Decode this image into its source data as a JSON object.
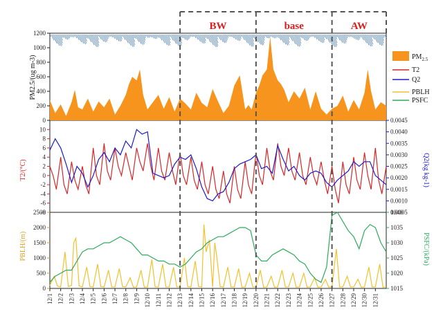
{
  "chart_data": [
    {
      "type": "area",
      "panel": "top",
      "ylabel": "PM2.5/(ug m-3)",
      "ylim": [
        0,
        1200
      ],
      "yticks": [
        "0",
        "200",
        "400",
        "600",
        "800",
        "1000",
        "1200"
      ],
      "series": [
        {
          "name": "PM2.5",
          "color": "#f7941d",
          "x": [
            1,
            1.5,
            2,
            2.5,
            3,
            3.3,
            3.6,
            4,
            4.5,
            5,
            5.5,
            6,
            6.5,
            7,
            7.5,
            8,
            8.3,
            8.6,
            9,
            9.3,
            9.6,
            10,
            10.5,
            11,
            11.5,
            12,
            12.5,
            13,
            13.5,
            14,
            14.5,
            15,
            15.5,
            16,
            16.5,
            17,
            17.5,
            18,
            18.5,
            19,
            19.3,
            19.6,
            20,
            20.3,
            20.6,
            21,
            21.3,
            21.6,
            22,
            22.3,
            22.6,
            23,
            23.5,
            24,
            24.5,
            25,
            25.5,
            26,
            26.5,
            27,
            27.5,
            28,
            28.5,
            29,
            29.5,
            30,
            30.3,
            30.6,
            31,
            31.5,
            32
          ],
          "values": [
            280,
            100,
            220,
            60,
            250,
            420,
            180,
            150,
            300,
            120,
            260,
            180,
            300,
            80,
            200,
            350,
            500,
            600,
            550,
            700,
            350,
            150,
            250,
            350,
            160,
            320,
            120,
            300,
            230,
            150,
            380,
            240,
            180,
            430,
            260,
            100,
            200,
            480,
            620,
            150,
            210,
            150,
            380,
            480,
            620,
            700,
            1150,
            700,
            550,
            500,
            420,
            250,
            400,
            300,
            450,
            150,
            400,
            160,
            80,
            160,
            200,
            340,
            120,
            280,
            150,
            380,
            700,
            400,
            150,
            250,
            200
          ]
        },
        {
          "name": "wind",
          "color": "#1f5fa8"
        }
      ],
      "legend": [
        "PM2.5",
        "T2",
        "Q2",
        "PBLH",
        "PSFC"
      ],
      "legend_position": "right"
    },
    {
      "type": "line",
      "panel": "middle",
      "ylabel_left": "T2/(°C)",
      "ylabel_right": "Q2(kg kg-1)",
      "ylim_left": [
        -8,
        12
      ],
      "ylim_right": [
        0.0005,
        0.0045
      ],
      "yticks_left": [
        "-8",
        "-6",
        "-4",
        "-2",
        "0",
        "2",
        "4",
        "6",
        "8",
        "10"
      ],
      "yticks_right": [
        "0.0005",
        "0.0010",
        "0.0015",
        "0.0020",
        "0.0025",
        "0.0030",
        "0.0035",
        "0.0040",
        "0.0045"
      ],
      "series": [
        {
          "name": "T2",
          "color": "#d62728",
          "x": [
            1,
            1.3,
            1.6,
            2,
            2.3,
            2.6,
            3,
            3.3,
            3.6,
            4,
            4.3,
            4.6,
            5,
            5.3,
            5.6,
            6,
            6.3,
            6.6,
            7,
            7.3,
            7.6,
            8,
            8.3,
            8.6,
            9,
            9.3,
            9.6,
            10,
            10.3,
            10.6,
            11,
            11.3,
            11.6,
            12,
            12.3,
            12.6,
            13,
            13.3,
            13.6,
            14,
            14.3,
            14.6,
            15,
            15.3,
            15.6,
            16,
            16.3,
            16.6,
            17,
            17.3,
            17.6,
            18,
            18.3,
            18.6,
            19,
            19.3,
            19.6,
            20,
            20.3,
            20.6,
            21,
            21.3,
            21.6,
            22,
            22.3,
            22.6,
            23,
            23.3,
            23.6,
            24,
            24.3,
            24.6,
            25,
            25.3,
            25.6,
            26,
            26.3,
            26.6,
            27,
            27.3,
            27.6,
            28,
            28.3,
            28.6,
            29,
            29.3,
            29.6,
            30,
            30.3,
            30.6,
            31,
            31.3,
            31.6,
            32
          ],
          "values": [
            2,
            0,
            -3,
            4,
            -2,
            -4,
            3,
            -1,
            -3,
            2,
            -2,
            -4,
            6,
            0,
            -2,
            7,
            1,
            -1,
            6,
            2,
            0,
            5,
            2,
            -1,
            6,
            3,
            1,
            7,
            2,
            -1,
            6,
            1,
            -1,
            5,
            1,
            -2,
            5,
            0,
            -2,
            4,
            -1,
            -3,
            3,
            -2,
            -4,
            2,
            -3,
            -5,
            1,
            -4,
            -6,
            2,
            -3,
            -5,
            3,
            -2,
            -4,
            5,
            0,
            -2,
            6,
            1,
            -1,
            7,
            2,
            0,
            6,
            1,
            -1,
            5,
            0,
            -2,
            4,
            0,
            -2,
            3,
            -1,
            -4,
            2,
            -3,
            -6,
            3,
            -2,
            -4,
            4,
            -1,
            -3,
            5,
            0,
            -3,
            6,
            -1,
            -4,
            2
          ]
        },
        {
          "name": "Q2",
          "color": "#1a1ad0",
          "x": [
            1,
            1.5,
            2,
            2.5,
            3,
            3.5,
            4,
            4.5,
            5,
            5.5,
            6,
            6.5,
            7,
            7.5,
            8,
            8.5,
            9,
            9.5,
            10,
            10.5,
            11,
            11.5,
            12,
            12.5,
            13,
            13.5,
            14,
            14.5,
            15,
            15.5,
            16,
            16.5,
            17,
            17.5,
            18,
            18.5,
            19,
            19.5,
            20,
            20.5,
            21,
            21.5,
            22,
            22.5,
            23,
            23.5,
            24,
            24.5,
            25,
            25.5,
            26,
            26.5,
            27,
            27.5,
            28,
            28.5,
            29,
            29.5,
            30,
            30.5,
            31,
            31.5,
            32
          ],
          "values": [
            0.0032,
            0.0037,
            0.0033,
            0.0026,
            0.0018,
            0.0025,
            0.0022,
            0.0016,
            0.0021,
            0.0028,
            0.0031,
            0.0027,
            0.0033,
            0.003,
            0.0036,
            0.0033,
            0.0041,
            0.0039,
            0.004,
            0.0022,
            0.0021,
            0.002,
            0.0021,
            0.0026,
            0.0029,
            0.0028,
            0.003,
            0.0024,
            0.0016,
            0.0011,
            0.001,
            0.0013,
            0.0014,
            0.0018,
            0.0024,
            0.0026,
            0.0027,
            0.0028,
            0.003,
            0.0024,
            0.0025,
            0.0022,
            0.0034,
            0.0028,
            0.0023,
            0.0025,
            0.0021,
            0.0019,
            0.0022,
            0.0023,
            0.0022,
            0.0018,
            0.0016,
            0.0019,
            0.0021,
            0.0023,
            0.0027,
            0.0025,
            0.0027,
            0.0027,
            0.0021,
            0.0019,
            0.0017
          ]
        }
      ]
    },
    {
      "type": "line",
      "panel": "bottom",
      "ylabel_left": "PBLH/(m)",
      "ylabel_right": "PSFC/(kPa)",
      "ylim_left": [
        0,
        2500
      ],
      "ylim_right": [
        1015,
        1040
      ],
      "yticks_left": [
        "0",
        "500",
        "1000",
        "1500",
        "2000",
        "2500"
      ],
      "yticks_right": [
        "1015",
        "1020",
        "1025",
        "1030",
        "1035",
        "1040"
      ],
      "series": [
        {
          "name": "PBLH",
          "color": "#f2c12e",
          "x": [
            1,
            1.4,
            1.7,
            2,
            2.4,
            2.7,
            3,
            3.2,
            3.4,
            3.7,
            4,
            4.4,
            4.7,
            5,
            5.4,
            5.7,
            6,
            6.4,
            6.7,
            7,
            7.4,
            7.7,
            8,
            8.4,
            8.7,
            9,
            9.4,
            9.7,
            10,
            10.4,
            10.7,
            11,
            11.4,
            11.7,
            12,
            12.4,
            12.7,
            13,
            13.4,
            13.7,
            14,
            14.4,
            14.7,
            15,
            15.2,
            15.4,
            15.7,
            16,
            16.2,
            16.4,
            16.7,
            17,
            17.4,
            17.7,
            18,
            18.4,
            18.7,
            19,
            19.4,
            19.7,
            20,
            20.4,
            20.7,
            21,
            21.4,
            21.7,
            22,
            22.4,
            22.7,
            23,
            23.4,
            23.7,
            24,
            24.4,
            24.7,
            25,
            25.4,
            25.7,
            26,
            26.4,
            26.7,
            27,
            27.4,
            27.7,
            28,
            28.4,
            28.7,
            29,
            29.4,
            29.7,
            30,
            30.4,
            30.7,
            31,
            31.4,
            31.7,
            32
          ],
          "values": [
            100,
            400,
            80,
            50,
            1200,
            60,
            100,
            1500,
            1650,
            80,
            50,
            700,
            60,
            50,
            800,
            60,
            50,
            600,
            50,
            50,
            650,
            60,
            50,
            350,
            40,
            50,
            600,
            40,
            50,
            950,
            50,
            50,
            800,
            50,
            50,
            700,
            50,
            50,
            1000,
            60,
            50,
            900,
            60,
            50,
            2100,
            1200,
            1600,
            50,
            1500,
            1000,
            60,
            50,
            700,
            50,
            50,
            650,
            40,
            50,
            500,
            50,
            50,
            600,
            40,
            50,
            400,
            40,
            50,
            600,
            50,
            50,
            500,
            40,
            50,
            500,
            40,
            50,
            350,
            40,
            50,
            300,
            40,
            50,
            1300,
            50,
            50,
            400,
            50,
            50,
            300,
            40,
            50,
            700,
            50,
            50,
            800,
            40,
            50
          ]
        },
        {
          "name": "PSFC",
          "color": "#2eaa5c",
          "x": [
            1,
            1.5,
            2,
            2.5,
            3,
            3.5,
            4,
            4.5,
            5,
            5.5,
            6,
            6.5,
            7,
            7.5,
            8,
            8.5,
            9,
            9.5,
            10,
            10.5,
            11,
            11.5,
            12,
            12.5,
            13,
            13.5,
            14,
            14.5,
            15,
            15.5,
            16,
            16.5,
            17,
            17.5,
            18,
            18.5,
            19,
            19.5,
            20,
            20.5,
            21,
            21.5,
            22,
            22.5,
            23,
            23.5,
            24,
            24.5,
            25,
            25.5,
            26,
            26.5,
            27,
            27.5,
            28,
            28.5,
            29,
            29.5,
            30,
            30.5,
            31,
            31.5,
            32
          ],
          "values": [
            1017,
            1019,
            1020,
            1021,
            1021,
            1024,
            1027,
            1028,
            1028,
            1029,
            1030,
            1030,
            1031,
            1032,
            1031,
            1030,
            1028,
            1026,
            1026,
            1025,
            1024,
            1024,
            1023,
            1023,
            1022,
            1023,
            1025,
            1027,
            1028,
            1030,
            1031,
            1032,
            1032,
            1033,
            1034,
            1035,
            1035,
            1034,
            1026,
            1024,
            1024,
            1026,
            1027,
            1028,
            1027,
            1026,
            1024,
            1023,
            1020,
            1018,
            1017,
            1022,
            1039,
            1040,
            1037,
            1034,
            1032,
            1028,
            1034,
            1036,
            1035,
            1030,
            1027
          ]
        }
      ],
      "xlabels": [
        "12/1",
        "12/2",
        "12/3",
        "12/4",
        "12/5",
        "12/6",
        "12/7",
        "12/8",
        "12/9",
        "12/10",
        "12/11",
        "12/12",
        "12/13",
        "12/14",
        "12/15",
        "12/16",
        "12/17",
        "12/18",
        "12/19",
        "12/20",
        "12/21",
        "12/22",
        "12/23",
        "12/24",
        "12/25",
        "12/26",
        "12/27",
        "12/28",
        "12/29",
        "12/30",
        "12/31"
      ]
    }
  ],
  "periods": [
    {
      "label": "BW",
      "start_day": 13,
      "end_day": 20
    },
    {
      "label": "base",
      "start_day": 20,
      "end_day": 27
    },
    {
      "label": "AW",
      "start_day": 27,
      "end_day": 32
    }
  ],
  "legend_labels": {
    "pm": "PM",
    "pm_sub": "2.5",
    "t2": "T2",
    "q2": "Q2",
    "pblh": "PBLH",
    "psfc": "PSFC"
  },
  "axis_labels": {
    "pm": "PM2.5/(ug m-3)",
    "t2": "T2/(°C)",
    "q2": "Q2(kg kg-1)",
    "pblh": "PBLH/(m)",
    "psfc": "PSFC/(kPa)"
  }
}
